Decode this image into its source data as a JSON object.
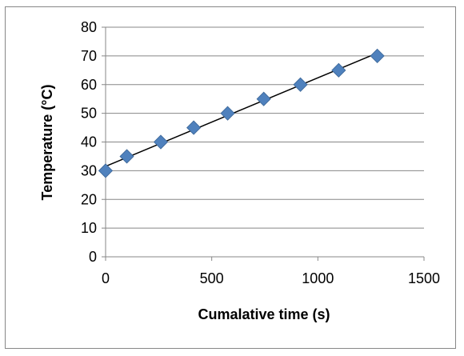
{
  "chart_data": {
    "type": "scatter",
    "title": "",
    "xlabel": "Cumalative time (s)",
    "ylabel": "Temperature (°C)",
    "xlim": [
      0,
      1500
    ],
    "ylim": [
      0,
      80
    ],
    "x_ticks": [
      0,
      500,
      1000,
      1500
    ],
    "y_ticks": [
      0,
      10,
      20,
      30,
      40,
      50,
      60,
      70,
      80
    ],
    "grid": "horizontal",
    "legend": "none",
    "series": [
      {
        "marker": "diamond",
        "color": "#4f81bd",
        "points": [
          {
            "x": 0,
            "y": 30
          },
          {
            "x": 100,
            "y": 35
          },
          {
            "x": 260,
            "y": 40
          },
          {
            "x": 415,
            "y": 45
          },
          {
            "x": 575,
            "y": 50
          },
          {
            "x": 745,
            "y": 55
          },
          {
            "x": 918,
            "y": 60
          },
          {
            "x": 1098,
            "y": 65
          },
          {
            "x": 1280,
            "y": 70
          }
        ]
      }
    ],
    "trendline": {
      "type": "linear",
      "color": "#000000",
      "from": {
        "x": 0,
        "y": 31.5
      },
      "to": {
        "x": 1280,
        "y": 71
      }
    }
  }
}
